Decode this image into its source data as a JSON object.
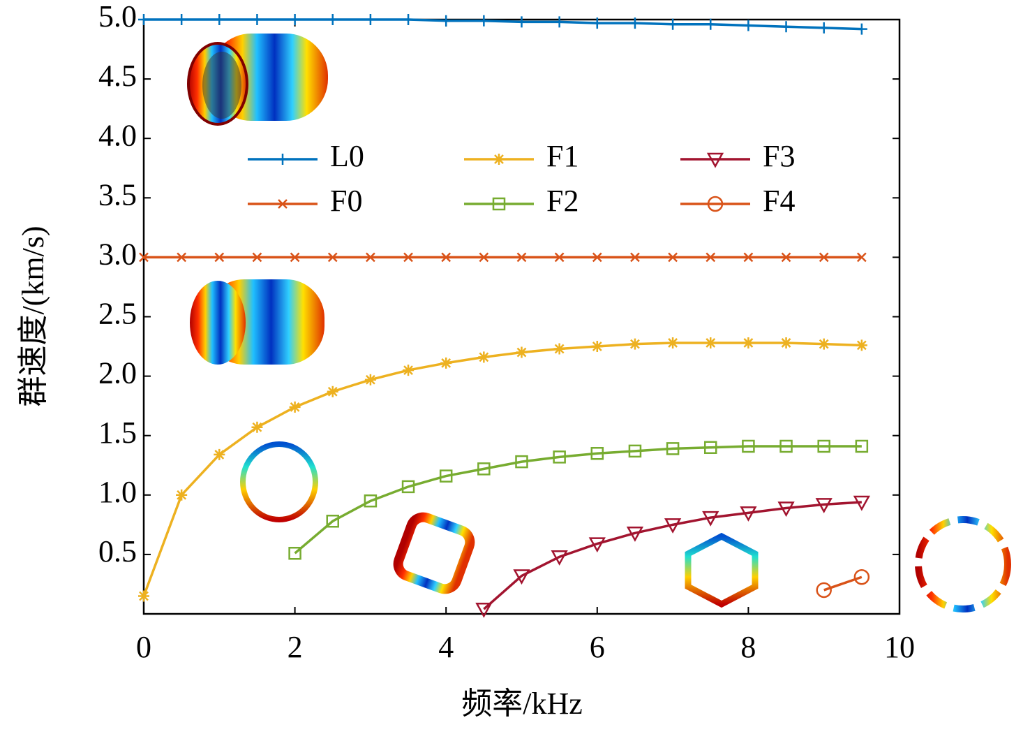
{
  "chart_data": {
    "type": "line",
    "xlabel": "频率/kHz",
    "ylabel": "群速度/(km/s)",
    "xlim": [
      0,
      10
    ],
    "ylim": [
      0,
      5
    ],
    "xticks": [
      0,
      2,
      4,
      6,
      8,
      10
    ],
    "yticks": [
      0.5,
      {
        "value": 1,
        "label": "1.0"
      },
      1.5,
      {
        "value": 2,
        "label": "2.0"
      },
      2.5,
      {
        "value": 3,
        "label": "3.0"
      },
      3.5,
      {
        "value": 4,
        "label": "4.0"
      },
      4.5,
      {
        "value": 5,
        "label": "5.0"
      }
    ],
    "series": [
      {
        "name": "L0",
        "color": "#0072bd",
        "marker": "plus",
        "x": [
          0,
          0.5,
          1,
          1.5,
          2,
          2.5,
          3,
          3.5,
          4,
          4.5,
          5,
          5.5,
          6,
          6.5,
          7,
          7.5,
          8,
          8.5,
          9,
          9.5
        ],
        "values": [
          5.0,
          5.0,
          5.0,
          5.0,
          5.0,
          5.0,
          5.0,
          5.0,
          4.99,
          4.99,
          4.98,
          4.98,
          4.97,
          4.97,
          4.96,
          4.96,
          4.95,
          4.94,
          4.93,
          4.92
        ]
      },
      {
        "name": "F0",
        "color": "#d95319",
        "marker": "cross",
        "x": [
          0,
          0.5,
          1,
          1.5,
          2,
          2.5,
          3,
          3.5,
          4,
          4.5,
          5,
          5.5,
          6,
          6.5,
          7,
          7.5,
          8,
          8.5,
          9,
          9.5
        ],
        "values": [
          3.0,
          3.0,
          3.0,
          3.0,
          3.0,
          3.0,
          3.0,
          3.0,
          3.0,
          3.0,
          3.0,
          3.0,
          3.0,
          3.0,
          3.0,
          3.0,
          3.0,
          3.0,
          3.0,
          3.0
        ]
      },
      {
        "name": "F1",
        "color": "#edb120",
        "marker": "star",
        "x": [
          0,
          0.5,
          1,
          1.5,
          2,
          2.5,
          3,
          3.5,
          4,
          4.5,
          5,
          5.5,
          6,
          6.5,
          7,
          7.5,
          8,
          8.5,
          9,
          9.5
        ],
        "values": [
          0.15,
          1.0,
          1.34,
          1.57,
          1.74,
          1.87,
          1.97,
          2.05,
          2.11,
          2.16,
          2.2,
          2.23,
          2.25,
          2.27,
          2.28,
          2.28,
          2.28,
          2.28,
          2.27,
          2.26
        ]
      },
      {
        "name": "F2",
        "color": "#77ac30",
        "marker": "square",
        "x": [
          2,
          2.5,
          3,
          3.5,
          4,
          4.5,
          5,
          5.5,
          6,
          6.5,
          7,
          7.5,
          8,
          8.5,
          9,
          9.5
        ],
        "values": [
          0.51,
          0.78,
          0.95,
          1.07,
          1.16,
          1.22,
          1.28,
          1.32,
          1.35,
          1.37,
          1.39,
          1.4,
          1.41,
          1.41,
          1.41,
          1.41
        ]
      },
      {
        "name": "F3",
        "color": "#a2142f",
        "marker": "triangle",
        "x": [
          4.5,
          5,
          5.5,
          6,
          6.5,
          7,
          7.5,
          8,
          8.5,
          9,
          9.5
        ],
        "values": [
          0.04,
          0.32,
          0.48,
          0.59,
          0.68,
          0.75,
          0.81,
          0.85,
          0.89,
          0.92,
          0.94
        ]
      },
      {
        "name": "F4",
        "color": "#d95319",
        "marker": "circle",
        "x": [
          9,
          9.5
        ],
        "values": [
          0.2,
          0.31
        ]
      }
    ]
  }
}
